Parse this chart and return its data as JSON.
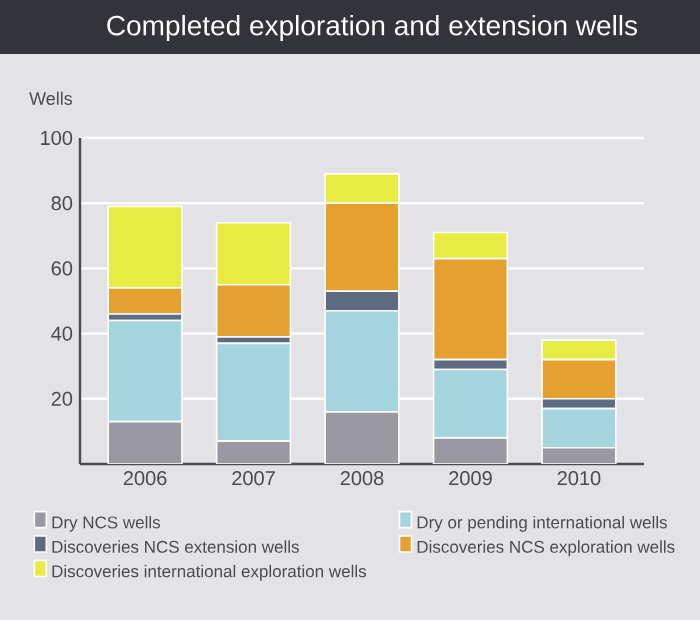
{
  "chart_data": {
    "type": "bar",
    "stacked": true,
    "title": "Completed exploration and extension wells",
    "ylabel": "Wells",
    "categories": [
      "2006",
      "2007",
      "2008",
      "2009",
      "2010"
    ],
    "series": [
      {
        "name": "Dry NCS wells",
        "color": "#9a98a3",
        "values": [
          13,
          7,
          16,
          8,
          5
        ]
      },
      {
        "name": "Dry or pending international wells",
        "color": "#a4d4dd",
        "values": [
          31,
          30,
          31,
          21,
          12
        ]
      },
      {
        "name": "Discoveries NCS extension wells",
        "color": "#5d6b80",
        "values": [
          2,
          2,
          6,
          3,
          3
        ]
      },
      {
        "name": "Discoveries NCS exploration wells",
        "color": "#e6a030",
        "values": [
          8,
          16,
          27,
          31,
          12
        ]
      },
      {
        "name": "Discoveries international exploration wells",
        "color": "#e8ec42",
        "values": [
          25,
          19,
          9,
          8,
          6
        ]
      }
    ],
    "ylim": [
      0,
      100
    ],
    "yticks": [
      20,
      40,
      60,
      80,
      100
    ],
    "grid": "y",
    "legend": "bottom"
  }
}
